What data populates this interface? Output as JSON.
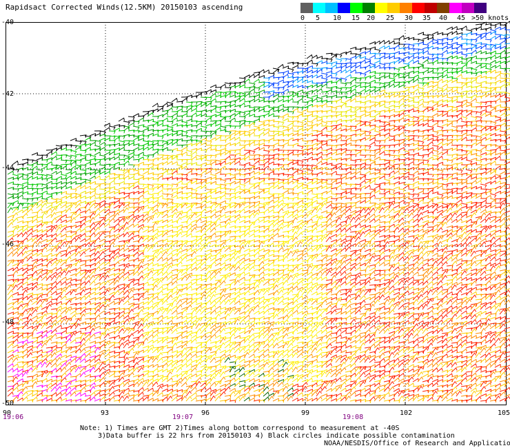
{
  "title": "Rapidsact Corrected Winds(12.5KM) 20150103 ascending",
  "legend": {
    "colors": [
      "#606060",
      "#00ffff",
      "#00c0ff",
      "#0000ff",
      "#00ff00",
      "#008000",
      "#ffff00",
      "#ffcc00",
      "#ff8000",
      "#ff0000",
      "#c00000",
      "#804000",
      "#ff00ff",
      "#c000c0",
      "#400080"
    ],
    "labels": [
      "0",
      "5",
      "10",
      "15",
      "20",
      "25",
      "30",
      "35",
      "40",
      "45",
      ">50 knots"
    ]
  },
  "axes": {
    "lat_labels": [
      "-40",
      "-42",
      "-44",
      "-46",
      "-48",
      "-50"
    ],
    "lon_labels": [
      "90",
      "93",
      "96",
      "99",
      "102",
      "105"
    ],
    "time_labels": [
      "19:06",
      "19:07",
      "19:08"
    ]
  },
  "notes": {
    "line1": "Note: 1) Times are GMT 2)Times along bottom correspond to measurement at -40S",
    "line2": "3)Data buffer is 22 hrs from 20150103 4) Black circles indicate possible contamination",
    "credit": "NOAA/NESDIS/Office of Research and Applications"
  }
}
